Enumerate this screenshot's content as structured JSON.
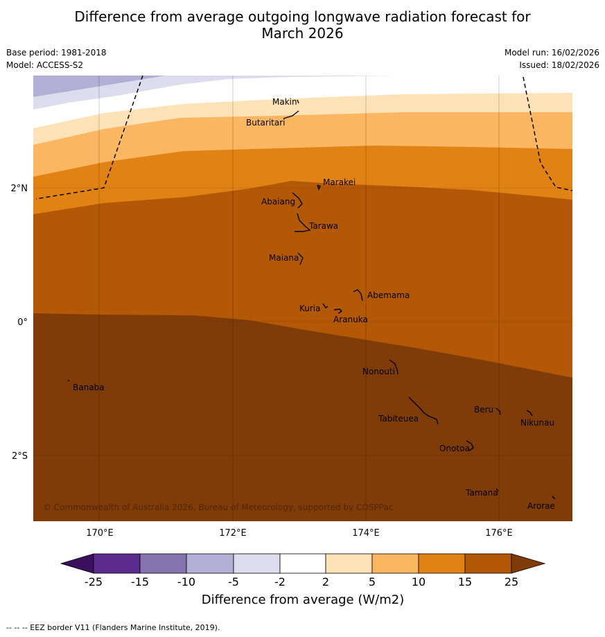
{
  "title_line1": "Difference from average outgoing longwave radiation forecast for",
  "title_line2": "March 2026",
  "base_period": "Base period: 1981-2018",
  "model": "Model: ACCESS-S2",
  "model_run": "Model run: 16/02/2026",
  "issued": "Issued: 18/02/2026",
  "copyright": "© Commonwealth of Australia 2026, Bureau of Meteorology, supported by COSPPac",
  "footnote": "--  --  -- EEZ border V11 (Flanders Marine Institute, 2019).",
  "map": {
    "lat_labels": [
      "2°N",
      "0°",
      "2°S"
    ],
    "lon_labels": [
      "170°E",
      "172°E",
      "174°E",
      "176°E"
    ],
    "places": [
      {
        "name": "Makin"
      },
      {
        "name": "Butaritari"
      },
      {
        "name": "Marakei"
      },
      {
        "name": "Abaiang"
      },
      {
        "name": "Tarawa"
      },
      {
        "name": "Maiana"
      },
      {
        "name": "Abemama"
      },
      {
        "name": "Kuria"
      },
      {
        "name": "Aranuka"
      },
      {
        "name": "Nonouti"
      },
      {
        "name": "Banaba"
      },
      {
        "name": "Beru"
      },
      {
        "name": "Tabiteuea"
      },
      {
        "name": "Nikunau"
      },
      {
        "name": "Onotoa"
      },
      {
        "name": "Tamana"
      },
      {
        "name": "Arorae"
      }
    ]
  },
  "colorbar": {
    "label": "Difference from average (W/m2)",
    "ticks": [
      "-25",
      "-15",
      "-10",
      "-5",
      "-2",
      "2",
      "5",
      "10",
      "15",
      "25"
    ],
    "colors": {
      "under": "#3b0f5e",
      "c1": "#5a2a8c",
      "c2": "#8574b0",
      "c3": "#b3aed6",
      "c4": "#dcdcee",
      "c5": "#ffffff",
      "c6": "#fde2b8",
      "c7": "#fab661",
      "c8": "#e08214",
      "c9": "#b35806",
      "over": "#7f3b08"
    }
  }
}
